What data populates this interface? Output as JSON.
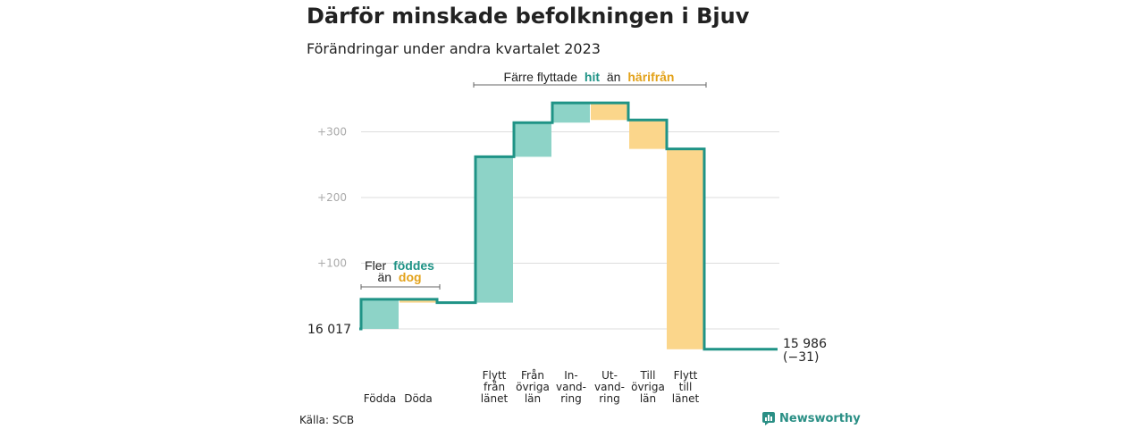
{
  "title": "Därför minskade befolkningen i Bjuv",
  "subtitle": "Förändringar under andra kvartalet 2023",
  "source": "Källa: SCB",
  "brand": {
    "name": "Newsworthy",
    "icon": "newsworthy-logo-icon"
  },
  "colors": {
    "increase": "#8dd3c7",
    "decrease": "#fbd68b",
    "line": "#1f9386",
    "grid": "#dddddd",
    "teal_text": "#1f9386",
    "orange_text": "#e3a21a",
    "tick_text": "#aaaaaa"
  },
  "annotations": {
    "births": {
      "line1_prefix": "Fler",
      "line1_highlight": "föddes",
      "line2_prefix": "än",
      "line2_highlight": "dog"
    },
    "moves": {
      "prefix": "Färre flyttade",
      "highlight1": "hit",
      "middle": "än",
      "highlight2": "härifrån"
    }
  },
  "chart_data": {
    "type": "waterfall",
    "title": "Därför minskade befolkningen i Bjuv",
    "subtitle": "Förändringar under andra kvartalet 2023",
    "start_value": 16017,
    "start_label": "16  017",
    "end_value": 15986,
    "end_label": "15 986",
    "end_change_label": "(−31)",
    "y_ticks": [
      {
        "value": 100,
        "label": "+100"
      },
      {
        "value": 200,
        "label": "+200"
      },
      {
        "value": 300,
        "label": "+300"
      }
    ],
    "ylim": [
      -35,
      350
    ],
    "grid": true,
    "steps": [
      {
        "label_lines": [
          "Födda"
        ],
        "change": 45
      },
      {
        "label_lines": [
          "Döda"
        ],
        "change": -5
      },
      {
        "label_lines": [
          "Flytt",
          "från",
          "länet"
        ],
        "change": 222
      },
      {
        "label_lines": [
          "Från",
          "övriga",
          "län"
        ],
        "change": 52
      },
      {
        "label_lines": [
          "In-",
          "vand-",
          "ring"
        ],
        "change": 30
      },
      {
        "label_lines": [
          "Ut-",
          "vand-",
          "ring"
        ],
        "change": -26
      },
      {
        "label_lines": [
          "Till",
          "övriga",
          "län"
        ],
        "change": -44
      },
      {
        "label_lines": [
          "Flytt",
          "till",
          "länet"
        ],
        "change": -305
      }
    ]
  }
}
